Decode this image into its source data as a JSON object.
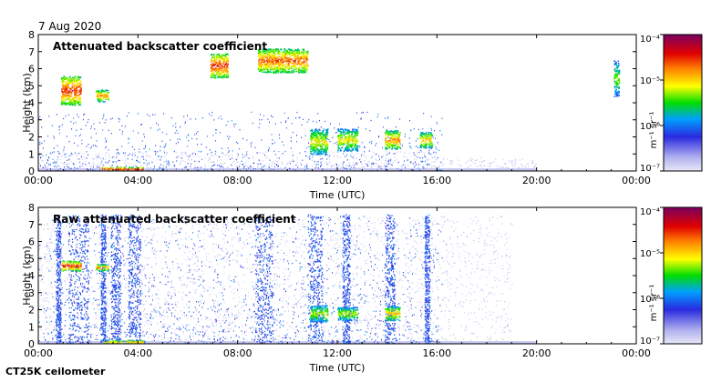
{
  "figure": {
    "date": "7 Aug 2020",
    "footer": "CT25K ceilometer"
  },
  "chart_data": [
    {
      "type": "heatmap",
      "title": "Attenuated backscatter coefficient",
      "xlabel": "Time (UTC)",
      "ylabel": "Height (km)",
      "xticks": [
        "00:00",
        "04:00",
        "08:00",
        "12:00",
        "16:00",
        "20:00",
        "00:00"
      ],
      "yticks": [
        "0",
        "1",
        "2",
        "3",
        "4",
        "5",
        "6",
        "7",
        "8"
      ],
      "xlim_hours": [
        0,
        24
      ],
      "ylim_km": [
        0,
        8
      ],
      "colorbar": {
        "label": "m⁻¹ sr⁻¹",
        "ticks": [
          "10⁻⁷",
          "10⁻⁶",
          "10⁻⁵",
          "10⁻⁴"
        ],
        "scale": "log",
        "range": [
          1e-07,
          0.0001
        ]
      },
      "features": [
        {
          "name": "early cloud",
          "t_hours": [
            0.9,
            1.7
          ],
          "height_km": [
            3.9,
            5.6
          ],
          "level": 0.85
        },
        {
          "name": "cloud 2h",
          "t_hours": [
            2.3,
            2.8
          ],
          "height_km": [
            4.1,
            4.8
          ],
          "level": 0.75
        },
        {
          "name": "surface layer",
          "t_hours": [
            2.5,
            4.2
          ],
          "height_km": [
            0,
            0.25
          ],
          "level": 0.9
        },
        {
          "name": "mid cloud 7h",
          "t_hours": [
            6.9,
            7.6
          ],
          "height_km": [
            5.5,
            6.9
          ],
          "level": 0.85
        },
        {
          "name": "cloud 9-10h",
          "t_hours": [
            8.8,
            10.8
          ],
          "height_km": [
            5.8,
            7.2
          ],
          "level": 0.8
        },
        {
          "name": "low cloud 11h",
          "t_hours": [
            10.9,
            11.6
          ],
          "height_km": [
            1.0,
            2.5
          ],
          "level": 0.65
        },
        {
          "name": "low cloud 12h",
          "t_hours": [
            12.0,
            12.8
          ],
          "height_km": [
            1.2,
            2.5
          ],
          "level": 0.65
        },
        {
          "name": "low cloud 14h",
          "t_hours": [
            13.9,
            14.5
          ],
          "height_km": [
            1.3,
            2.4
          ],
          "level": 0.75
        },
        {
          "name": "low cloud 15.5h",
          "t_hours": [
            15.3,
            15.8
          ],
          "height_km": [
            1.4,
            2.3
          ],
          "level": 0.7
        },
        {
          "name": "late cloud 23h",
          "t_hours": [
            23.1,
            23.3
          ],
          "height_km": [
            4.4,
            6.5
          ],
          "level": 0.55
        }
      ]
    },
    {
      "type": "heatmap",
      "title": "Raw attenuated backscatter coefficient",
      "xlabel": "Time (UTC)",
      "ylabel": "Height (km)",
      "xticks": [
        "00:00",
        "04:00",
        "08:00",
        "12:00",
        "16:00",
        "20:00",
        "00:00"
      ],
      "yticks": [
        "0",
        "1",
        "2",
        "3",
        "4",
        "5",
        "6",
        "7",
        "8"
      ],
      "xlim_hours": [
        0,
        24
      ],
      "ylim_km": [
        0,
        8
      ],
      "colorbar": {
        "label": "m⁻¹ sr⁻¹",
        "ticks": [
          "10⁻⁷",
          "10⁻⁶",
          "10⁻⁵",
          "10⁻⁴"
        ],
        "scale": "log",
        "range": [
          1e-07,
          0.0001
        ]
      },
      "noise_bands_hours": [
        [
          0.7,
          0.9
        ],
        [
          1.2,
          2.0
        ],
        [
          2.5,
          2.7
        ],
        [
          2.9,
          3.3
        ],
        [
          3.6,
          4.1
        ],
        [
          8.7,
          9.4
        ],
        [
          10.8,
          11.4
        ],
        [
          12.2,
          12.5
        ],
        [
          13.9,
          14.3
        ],
        [
          15.5,
          15.7
        ]
      ],
      "features": [
        {
          "name": "early cloud",
          "t_hours": [
            0.9,
            1.7
          ],
          "height_km": [
            4.3,
            4.9
          ],
          "level": 0.85
        },
        {
          "name": "cloud 2h",
          "t_hours": [
            2.3,
            2.8
          ],
          "height_km": [
            4.3,
            4.7
          ],
          "level": 0.75
        },
        {
          "name": "surface layer",
          "t_hours": [
            2.5,
            4.2
          ],
          "height_km": [
            0,
            0.25
          ],
          "level": 0.7
        },
        {
          "name": "low cloud 11h",
          "t_hours": [
            10.9,
            11.6
          ],
          "height_km": [
            1.3,
            2.3
          ],
          "level": 0.6
        },
        {
          "name": "low cloud 12h",
          "t_hours": [
            12.0,
            12.8
          ],
          "height_km": [
            1.4,
            2.2
          ],
          "level": 0.6
        },
        {
          "name": "low cloud 14h",
          "t_hours": [
            13.9,
            14.5
          ],
          "height_km": [
            1.4,
            2.2
          ],
          "level": 0.7
        }
      ]
    }
  ]
}
